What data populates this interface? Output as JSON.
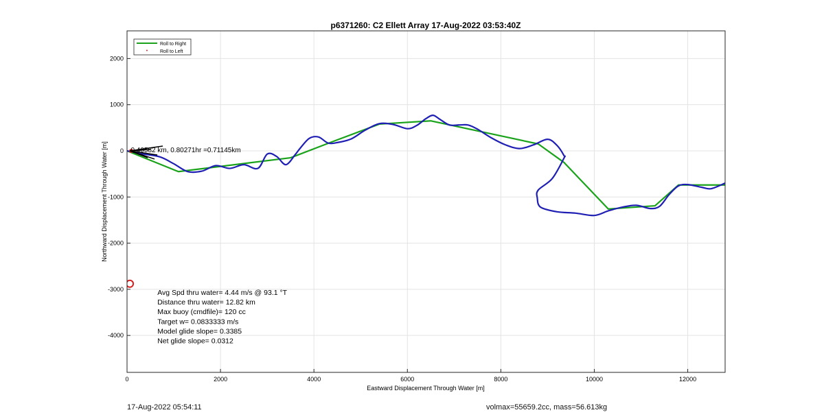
{
  "chart_data": {
    "type": "line",
    "title": "p6371260: C2 Ellett Array 17-Aug-2022 03:53:40Z",
    "xlabel": "Eastward Displacement Through Water [m]",
    "ylabel": "Northward Displacement Through Water [m]",
    "xlim": [
      0,
      12800
    ],
    "ylim": [
      -4800,
      2600
    ],
    "xticks": [
      0,
      2000,
      4000,
      6000,
      8000,
      10000,
      12000
    ],
    "yticks": [
      2000,
      1000,
      0,
      -1000,
      -2000,
      -3000,
      -4000
    ],
    "grid": true,
    "legend_position": "top-left",
    "legend": [
      {
        "label": "Roll to Right",
        "color": "#1aa31a",
        "marker": "line"
      },
      {
        "label": "Roll to Left",
        "color": "#d62020",
        "marker": "dot"
      }
    ],
    "series": [
      {
        "name": "Roll to Right",
        "color": "#1aa31a",
        "x": [
          0,
          1100,
          3500,
          4400,
          5400,
          6500,
          8800,
          9350,
          10300,
          11300,
          11800,
          12800
        ],
        "y": [
          0,
          -450,
          -150,
          200,
          580,
          650,
          150,
          -250,
          -1260,
          -1190,
          -740,
          -740
        ]
      },
      {
        "name": "",
        "color": "#1f1fb4",
        "x": [
          0,
          300,
          700,
          1000,
          1300,
          1600,
          1900,
          2200,
          2500,
          2800,
          3000,
          3200,
          3400,
          3600,
          3700,
          3900,
          4100,
          4300,
          4500,
          4800,
          5100,
          5400,
          5700,
          6000,
          6200,
          6400,
          6550,
          6700,
          6900,
          7100,
          7300,
          7500,
          7800,
          8100,
          8400,
          8700,
          9000,
          9200,
          9350,
          9350,
          9100,
          8800,
          8780,
          8850,
          9200,
          9600,
          10000,
          10300,
          10600,
          10900,
          11200,
          11400,
          11600,
          11800,
          12000,
          12300,
          12500,
          12800
        ],
        "y": [
          0,
          -60,
          -130,
          -280,
          -450,
          -440,
          -320,
          -380,
          -300,
          -380,
          -70,
          -120,
          -300,
          -80,
          50,
          270,
          300,
          170,
          180,
          260,
          450,
          590,
          570,
          480,
          550,
          700,
          770,
          680,
          560,
          560,
          560,
          470,
          280,
          130,
          50,
          130,
          250,
          120,
          -100,
          -160,
          -600,
          -850,
          -1020,
          -1220,
          -1320,
          -1350,
          -1400,
          -1300,
          -1220,
          -1180,
          -1250,
          -1200,
          -950,
          -760,
          -730,
          -790,
          -820,
          -700
        ]
      },
      {
        "name": "Roll to Left",
        "color": "#d62020",
        "x": [
          60,
          90
        ],
        "y": [
          -2880,
          0
        ]
      }
    ],
    "annotations": [
      {
        "text": "0.40582 km, 0.80271hr =0.71145km",
        "x": 80,
        "y": -30
      },
      {
        "text": "Avg Spd thru water=  4.44 m/s @  93.1 °T",
        "x": 650,
        "y": -3120
      },
      {
        "text": "Distance thru water= 12.82 km",
        "x": 650,
        "y": -3330
      },
      {
        "text": "Max buoy (cmdfile)= 120 cc",
        "x": 650,
        "y": -3540
      },
      {
        "text": "Target w= 0.0833333 m/s",
        "x": 650,
        "y": -3750
      },
      {
        "text": "Model glide slope= 0.3385",
        "x": 650,
        "y": -3960
      },
      {
        "text": "Net glide slope= 0.0312",
        "x": 650,
        "y": -4170
      }
    ]
  },
  "footer": {
    "left": "17-Aug-2022 05:54:11",
    "right": "volmax=55659.2cc, mass=56.613kg"
  }
}
